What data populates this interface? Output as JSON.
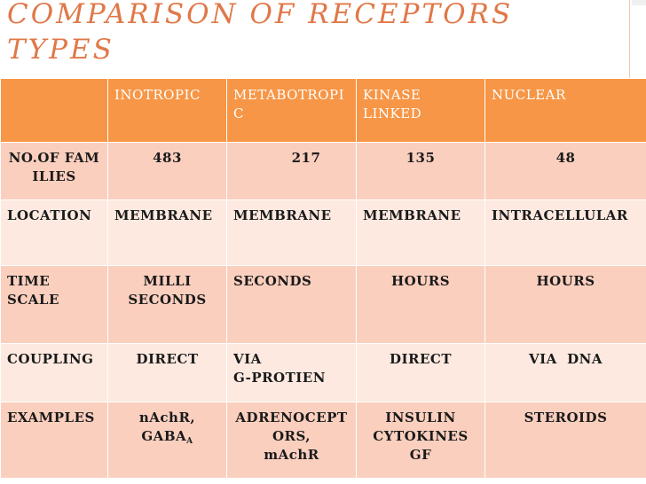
{
  "title": {
    "line1": "COMPARISON OF RECEPTORS",
    "line2": "TYPES"
  },
  "table": {
    "header": [
      "",
      "INOTROPIC",
      "METABOTROPIC",
      "KINASE\nLINKED",
      "NUCLEAR"
    ],
    "rows": [
      {
        "label": "NO.OF FAMILIES",
        "cells": [
          "483",
          "217",
          "135",
          "48"
        ]
      },
      {
        "label": "LOCATION",
        "cells": [
          "MEMBRANE",
          "MEMBRANE",
          "MEMBRANE",
          "INTRACELLULAR"
        ]
      },
      {
        "label": "TIME SCALE",
        "cells": [
          "MILLI SECONDS",
          "SECONDS",
          "HOURS",
          "HOURS"
        ]
      },
      {
        "label": "COUPLING",
        "cells": [
          "DIRECT",
          "VIA\n G-PROTIEN",
          "DIRECT",
          "VIA  DNA"
        ]
      },
      {
        "label": "EXAMPLES",
        "cells": [
          "nAchR,",
          "ADRENOCEPTORS,\nmAchR",
          "INSULIN\nCYTOKINES\nGF",
          "STEROIDS"
        ]
      }
    ],
    "example_gaba": "GABA",
    "example_gaba_sub": "A"
  },
  "colors": {
    "title": "#e07848",
    "header_bg": "#f79646",
    "row_dark": "#fbcfbe",
    "row_light": "#fde9e0"
  }
}
